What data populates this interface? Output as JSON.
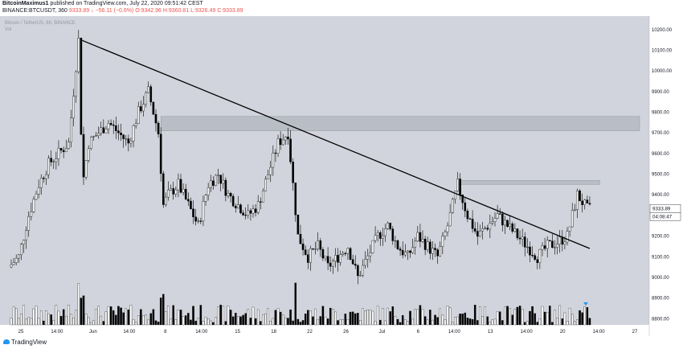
{
  "header": {
    "author": "BitcoinMaximus1",
    "published_text": "published on TradingView.com, July 22, 2020 09:51:42 CEST",
    "symbol_line": "BINANCE:BTCUSDT, 360",
    "ohlc": "9333.89 ↓ −56.11 (−0.6%) O:9342.96 H:9360.81 L:9326.49 C:9333.89"
  },
  "chart_overlay": {
    "title": "Bitcoin / TetherUS, 6h, BINANCE",
    "vol_label": "Vol"
  },
  "footer": {
    "brand": "TradingView"
  },
  "colors": {
    "background": "#d1d4dc",
    "candle_up_fill": "#ffffff",
    "candle_down_fill": "#000000",
    "candle_outline": "#000000",
    "zone_fill": "#a6a9b3",
    "trendline": "#000000",
    "price_tag_bg": "#ffffff",
    "marker": "#2196f3"
  },
  "chart_data": {
    "type": "candlestick",
    "title": "Bitcoin / TetherUS, 6h, BINANCE",
    "interval": "6h",
    "y_axis": {
      "ticks": [
        8800,
        8900,
        9000,
        9100,
        9200,
        9300,
        9400,
        9500,
        9600,
        9700,
        9800,
        9900,
        10000,
        10100,
        10200
      ],
      "tick_labels": [
        "8800.00",
        "8900.00",
        "9000.00",
        "9100.00",
        "9200.00",
        "9300.00",
        "9400.00",
        "9500.00",
        "9600.00",
        "9700.00",
        "9800.00",
        "9900.00",
        "10000.00",
        "10100.00",
        "10200.00"
      ],
      "range": [
        8770,
        10250
      ]
    },
    "x_axis": {
      "tick_labels": [
        "25",
        "14:00",
        "Jun",
        "14:00",
        "8",
        "14:00",
        "15",
        "18",
        "22",
        "26",
        "Jul",
        "6",
        "14:00",
        "13",
        "14:00",
        "20",
        "14:00",
        "27"
      ],
      "range": [
        "May 25",
        "Jul 27"
      ]
    },
    "price_label": "9333.89",
    "countdown_label": "04:08:47",
    "trendline": {
      "start": {
        "date": "Jun 1",
        "price": 10150
      },
      "end": {
        "date": "Jul 22",
        "price": 9140
      }
    },
    "resistance_zones": [
      {
        "from": "Jun 9",
        "to": "Jul 27",
        "low": 9710,
        "high": 9780
      },
      {
        "from": "Jul 9",
        "to": "Jul 23",
        "low": 9450,
        "high": 9470
      }
    ],
    "shown_price_levels": [
      10000,
      9500,
      9200,
      9000
    ]
  }
}
